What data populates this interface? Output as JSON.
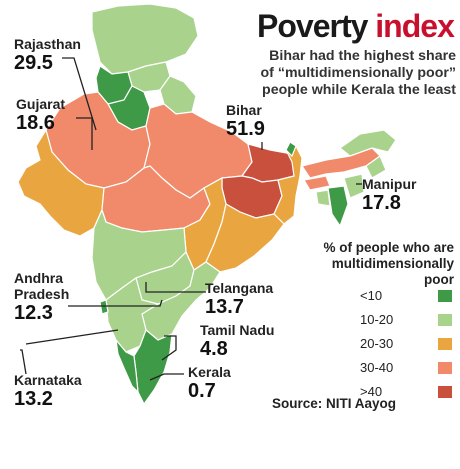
{
  "header": {
    "title_main": "Poverty",
    "title_accent": "index",
    "subtitle_lines": [
      "Bihar had the highest share",
      "of “multidimensionally poor”",
      "people while Kerala the least"
    ]
  },
  "callouts": [
    {
      "state": "Rajasthan",
      "value": "29.5"
    },
    {
      "state": "Gujarat",
      "value": "18.6"
    },
    {
      "state": "Bihar",
      "value": "51.9"
    },
    {
      "state": "Manipur",
      "value": "17.8"
    },
    {
      "state": "Andhra Pradesh",
      "value": "12.3"
    },
    {
      "state": "Telangana",
      "value": "13.7"
    },
    {
      "state": "Tamil Nadu",
      "value": "4.8"
    },
    {
      "state": "Kerala",
      "value": "0.7"
    },
    {
      "state": "Karnataka",
      "value": "13.2"
    }
  ],
  "legend": {
    "title": "% of people who are multidimensionally poor",
    "items": [
      {
        "label": "<10",
        "color": "#3f9a48"
      },
      {
        "label": "10-20",
        "color": "#a9d38c"
      },
      {
        "label": "20-30",
        "color": "#e9a640"
      },
      {
        "label": "30-40",
        "color": "#f08a6a"
      },
      {
        "label": ">40",
        "color": "#c9503c"
      }
    ]
  },
  "source": "Source: NITI Aayog",
  "colors": {
    "accent": "#c8102e",
    "border": "#ffffff"
  }
}
